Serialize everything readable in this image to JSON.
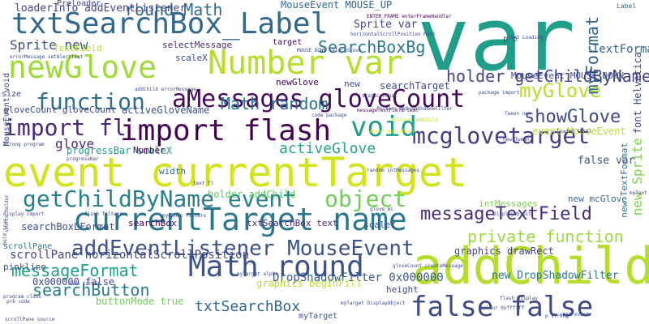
{
  "colors": {
    "background": "#ffffff",
    "palette": [
      "#440154",
      "#482878",
      "#3e4989",
      "#31688e",
      "#26828e",
      "#1f9e89",
      "#35b779",
      "#6ece58",
      "#b5de2b",
      "#fde725"
    ]
  },
  "words": [
    {
      "text": "var",
      "color": "#1f9e89"
    },
    {
      "text": "event currentTarget",
      "color": "#d2e21b"
    },
    {
      "text": "currentTarget name",
      "color": "#2a788e"
    },
    {
      "text": "addChild",
      "color": "#b5de2b"
    },
    {
      "text": "Math round",
      "color": "#3b528b"
    },
    {
      "text": "false false",
      "color": "#3e4989"
    },
    {
      "text": "import flash",
      "color": "#440154"
    },
    {
      "text": "txtSearchBox_Label",
      "color": "#31688e"
    },
    {
      "text": "Number var",
      "color": "#b5de2b"
    },
    {
      "text": "newGlove",
      "color": "#a0da39"
    },
    {
      "text": "aMessages gloveCount",
      "color": "#46085c"
    },
    {
      "text": "mcglovetarget",
      "color": "#433e85"
    },
    {
      "text": "getChildByName event",
      "color": "#277f8e"
    },
    {
      "text": "addEventListener MouseEvent",
      "color": "#3b528b"
    },
    {
      "text": "void",
      "color": "#1f9e89"
    },
    {
      "text": "object",
      "color": "#6ece58"
    },
    {
      "text": "function",
      "color": "#2c728e"
    },
    {
      "text": "import fl",
      "color": "#482878"
    },
    {
      "text": "messageTextField",
      "color": "#472d7b"
    },
    {
      "text": "private function",
      "color": "#9bd93c"
    },
    {
      "text": "SearchBoxBg",
      "color": "#2a788e"
    },
    {
      "text": "holder getChildByName",
      "color": "#414487"
    },
    {
      "text": "myGlove",
      "color": "#b5de2b"
    },
    {
      "text": "showGlove",
      "color": "#3e4989"
    },
    {
      "text": "myFormat",
      "color": "#33638d"
    },
    {
      "text": "round Math",
      "color": "#31688e"
    },
    {
      "text": "Math random",
      "color": "#2d708e"
    },
    {
      "text": "activeGlove",
      "color": "#22a884"
    },
    {
      "text": "searchButton",
      "color": "#287d8e"
    },
    {
      "text": "txtSearchBox",
      "color": "#31688e"
    },
    {
      "text": "messageFormat",
      "color": "#1f9e89"
    },
    {
      "text": "Sprite new",
      "color": "#3b528b"
    },
    {
      "text": "glove",
      "color": "#482878"
    },
    {
      "text": "Sprite var",
      "color": "#3e4989"
    },
    {
      "text": "new Sprite",
      "color": "#7ad151"
    },
    {
      "text": "loaderInfo addEventListener",
      "color": "#414487"
    },
    {
      "text": "MouseEvent MOUSE_UP",
      "color": "#31688e"
    },
    {
      "text": "MouseEvent MOUSE_DOWN",
      "color": "#3e4989"
    },
    {
      "text": "scrollPane horizontalScrollPosition",
      "color": "#404688"
    },
    {
      "text": "DropShadowFilter 0x000000",
      "color": "#38588c"
    },
    {
      "text": "0x000000 false",
      "color": "#3e4989"
    },
    {
      "text": "new DropShadowFilter",
      "color": "#2c728e"
    },
    {
      "text": "graphics beginFill",
      "color": "#b5de2b"
    },
    {
      "text": "graphics drawRect",
      "color": "#414487"
    },
    {
      "text": "activeGloveName",
      "color": "#3b528b"
    },
    {
      "text": "holder addChild",
      "color": "#5ec962"
    },
    {
      "text": "event MouseEvent",
      "color": "#b8de29"
    },
    {
      "text": "buttonMode true",
      "color": "#6ece58"
    },
    {
      "text": "progressBar scaleX",
      "color": "#1f9e89"
    },
    {
      "text": "searchBoxLFormat",
      "color": "#3e4989"
    },
    {
      "text": "new mcGlove",
      "color": "#31688e"
    },
    {
      "text": "TextFormat",
      "color": "#33638d"
    },
    {
      "text": "newGlove",
      "color": "#440154"
    },
    {
      "text": "false var",
      "color": "#3b528b"
    },
    {
      "text": "new TextFormat",
      "color": "#2a788e"
    },
    {
      "text": "font Helvetica",
      "color": "#3e4989"
    },
    {
      "text": "selectMessage",
      "color": "#482878"
    },
    {
      "text": "searchBox",
      "color": "#440154"
    },
    {
      "text": "searchTarget",
      "color": "#3e4989"
    },
    {
      "text": "intMessages",
      "color": "#7ad151"
    },
    {
      "text": "Number",
      "color": "#440154"
    },
    {
      "text": "TextField",
      "color": "#b5de2b"
    },
    {
      "text": "scaleX",
      "color": "#3e4989"
    },
    {
      "text": "scaleY",
      "color": "#3e4989"
    },
    {
      "text": "height",
      "color": "#3e4989"
    },
    {
      "text": "width",
      "color": "#31688e"
    },
    {
      "text": "new",
      "color": "#3b528b"
    },
    {
      "text": "pinkline",
      "color": "#3b528b"
    },
    {
      "text": "scrollPane",
      "color": "#2c728e"
    },
    {
      "text": "Preloader",
      "color": "#3e4989"
    },
    {
      "text": "gloveCount gloveCount",
      "color": "#3e4989"
    },
    {
      "text": "MouseEvent void",
      "color": "#3e4989"
    },
    {
      "text": "size",
      "color": "#3e4989"
    },
    {
      "text": "p p",
      "color": "#3e4989"
    },
    {
      "text": "myTarget",
      "color": "#3b528b"
    },
    {
      "text": "txtSearchBox text",
      "color": "#482878"
    },
    {
      "text": "target",
      "color": "#46085c"
    },
    {
      "text": "Label",
      "color": "#31688e"
    },
    {
      "text": "errorMessage setAlertText",
      "color": "#3e4989"
    },
    {
      "text": "ENTER_FRAME enterFrameHandler",
      "color": "#440154"
    },
    {
      "text": "horizontalScrollPosition Math",
      "color": "#3e4989"
    },
    {
      "text": "messageTextField text",
      "color": "#46085c"
    },
    {
      "text": "filters myDropShadowFilter",
      "color": "#3e4989"
    },
    {
      "text": "mcGlove addChild",
      "color": "#b5de2b"
    },
    {
      "text": "event MouseEvent",
      "color": "#fde725"
    },
    {
      "text": "progressBar",
      "color": "#3e4989"
    },
    {
      "text": "package import",
      "color": "#3e4989"
    },
    {
      "text": "text Loading",
      "color": "#3e4989"
    },
    {
      "text": "loaded total",
      "color": "#3e4989"
    },
    {
      "text": "myText",
      "color": "#3e4989"
    },
    {
      "text": "flash filters",
      "color": "#3e4989"
    },
    {
      "text": "strong program",
      "color": "#3e4989"
    },
    {
      "text": "code package",
      "color": "#3e4989"
    },
    {
      "text": "pre code",
      "color": "#3e4989"
    },
    {
      "text": "program class",
      "color": "#3e4989"
    },
    {
      "text": "display import",
      "color": "#3e4989"
    },
    {
      "text": "text fl",
      "color": "#3e4989"
    },
    {
      "text": "gloveCount createMessage",
      "color": "#3e4989"
    },
    {
      "text": "DisplayObject",
      "color": "#3e4989"
    },
    {
      "text": "myGlove filters",
      "color": "#3e4989"
    },
    {
      "text": "myTarget alpha",
      "color": "#3e4989"
    },
    {
      "text": "myTarget DisplayObject",
      "color": "#3e4989"
    },
    {
      "text": "colour 0xffffff",
      "color": "#3e4989"
    },
    {
      "text": "uint event",
      "color": "#3e4989"
    },
    {
      "text": "p strong",
      "color": "#3e4989"
    },
    {
      "text": "flash display",
      "color": "#3e4989"
    },
    {
      "text": "name target",
      "color": "#3e4989"
    },
    {
      "text": "new Tween",
      "color": "#3e4989"
    },
    {
      "text": "static const",
      "color": "#3e4989"
    },
    {
      "text": "MOUSE_DOWN selectGlove",
      "color": "#3e4989"
    },
    {
      "text": "Tween new",
      "color": "#3e4989"
    },
    {
      "text": "glove_mc",
      "color": "#3e4989"
    },
    {
      "text": "scrollPane source",
      "color": "#3e4989"
    },
    {
      "text": "addChild errorMessage",
      "color": "#3e4989"
    },
    {
      "text": "random intMessages",
      "color": "#3e4989"
    },
    {
      "text": "source holder",
      "color": "#3e4989"
    },
    {
      "text": "bold true",
      "color": "#3e4989"
    }
  ]
}
